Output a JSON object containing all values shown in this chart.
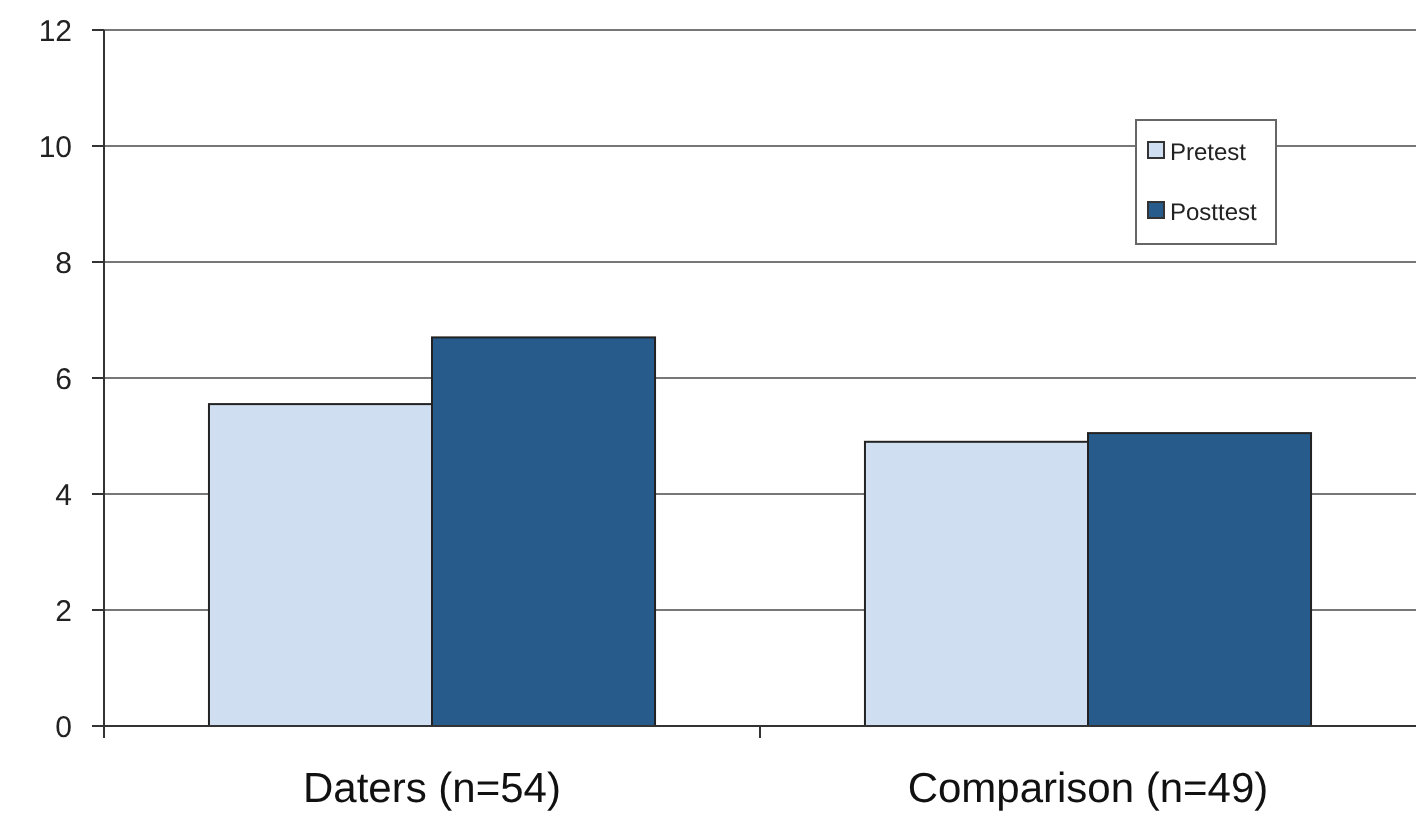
{
  "chart_data": {
    "type": "bar",
    "categories": [
      "Daters (n=54)",
      "Comparison (n=49)"
    ],
    "series": [
      {
        "name": "Pretest",
        "color": "#cfdef0",
        "values": [
          5.55,
          4.9
        ]
      },
      {
        "name": "Posttest",
        "color": "#265b8c",
        "values": [
          6.7,
          5.05
        ]
      }
    ],
    "ylim": [
      0,
      12
    ],
    "yticks": [
      0,
      2,
      4,
      6,
      8,
      10,
      12
    ],
    "grid": "y",
    "legend": "top right"
  }
}
